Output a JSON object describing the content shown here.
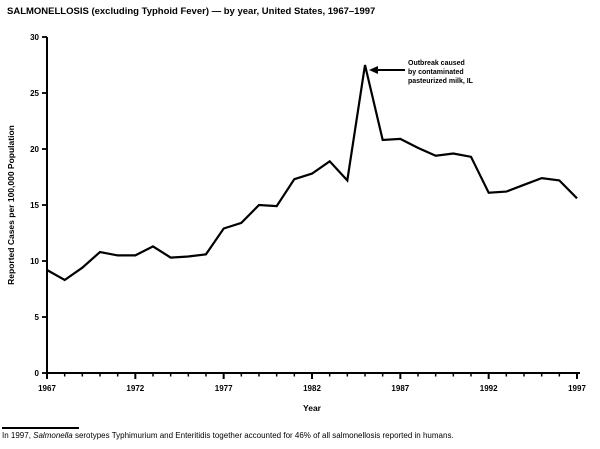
{
  "chart_data": {
    "type": "line",
    "title": "SALMONELLOSIS (excluding Typhoid Fever) — by year, United States, 1967–1997",
    "xlabel": "Year",
    "ylabel": "Reported Cases per 100,000 Population",
    "xlim": [
      1967,
      1997
    ],
    "ylim": [
      0,
      30
    ],
    "yticks": [
      0,
      5,
      10,
      15,
      20,
      25,
      30
    ],
    "xticks_major": [
      1967,
      1972,
      1977,
      1982,
      1987,
      1992,
      1997
    ],
    "minor_ticks_every_year": true,
    "grid": false,
    "legend": "none",
    "line_color": "#000000",
    "x": [
      1967,
      1968,
      1969,
      1970,
      1971,
      1972,
      1973,
      1974,
      1975,
      1976,
      1977,
      1978,
      1979,
      1980,
      1981,
      1982,
      1983,
      1984,
      1985,
      1986,
      1987,
      1988,
      1989,
      1990,
      1991,
      1992,
      1993,
      1994,
      1995,
      1996,
      1997
    ],
    "values": [
      9.2,
      8.3,
      9.4,
      10.8,
      10.5,
      10.5,
      11.3,
      10.3,
      10.4,
      10.6,
      12.9,
      13.4,
      15.0,
      14.9,
      17.3,
      17.8,
      18.9,
      17.2,
      27.5,
      20.8,
      20.9,
      20.1,
      19.4,
      19.6,
      19.3,
      16.1,
      16.2,
      16.8,
      17.4,
      17.2,
      15.6
    ]
  },
  "annotation": {
    "lines": [
      "Outbreak caused",
      "by contaminated",
      "pasteurized milk, IL"
    ],
    "points_to": {
      "year": 1985,
      "value": 27.5
    }
  },
  "footnote": {
    "prefix": "In 1997, ",
    "italic": "Salmonella",
    "suffix": " serotypes Typhimurium and Enteritidis together accounted for 46% of all salmonellosis reported in humans."
  }
}
